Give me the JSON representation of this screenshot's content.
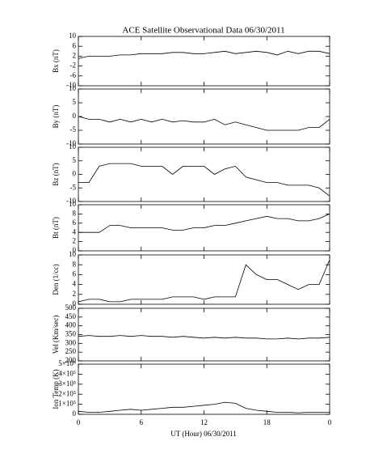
{
  "chart_data": {
    "type": "line",
    "title": "ACE Satellite Observational Data   06/30/2011",
    "xlabel": "UT (Hour)   06/30/2011",
    "x": [
      0,
      1,
      2,
      3,
      4,
      5,
      6,
      7,
      8,
      9,
      10,
      11,
      12,
      13,
      14,
      15,
      16,
      17,
      18,
      19,
      20,
      21,
      22,
      23,
      24
    ],
    "xlim": [
      0,
      24
    ],
    "xticks": [
      0,
      6,
      12,
      18,
      {
        "value": 24,
        "label": "0"
      }
    ],
    "panels": [
      {
        "type": "line",
        "ylabel": "Bx (nT)",
        "ylim": [
          -10,
          10
        ],
        "yticks": [
          -10,
          -6,
          -2,
          2,
          6,
          10
        ],
        "values": [
          1,
          2,
          2,
          2,
          2.5,
          2.5,
          3,
          3,
          3,
          3.5,
          3.5,
          3,
          3,
          3.5,
          4,
          3,
          3.5,
          4,
          3.5,
          2.5,
          4,
          3,
          4,
          4,
          3
        ]
      },
      {
        "type": "line",
        "ylabel": "By (nT)",
        "ylim": [
          -10,
          10
        ],
        "yticks": [
          -10,
          -5,
          0,
          5,
          10
        ],
        "values": [
          0,
          -1,
          -1,
          -2,
          -1,
          -2,
          -1,
          -2,
          -1,
          -2,
          -1.5,
          -2,
          -2,
          -1,
          -3,
          -2,
          -3,
          -4,
          -5,
          -5,
          -5,
          -5,
          -4,
          -4,
          -1
        ]
      },
      {
        "type": "line",
        "ylabel": "Bz (nT)",
        "ylim": [
          -10,
          10
        ],
        "yticks": [
          -10,
          -5,
          0,
          5,
          10
        ],
        "values": [
          -3,
          -3,
          3,
          4,
          4,
          4,
          3,
          3,
          3,
          0,
          3,
          3,
          3,
          0,
          2,
          3,
          -1,
          -2,
          -3,
          -3,
          -4,
          -4,
          -4,
          -5,
          -8
        ]
      },
      {
        "type": "line",
        "ylabel": "Bt (nT)",
        "ylim": [
          0,
          10
        ],
        "yticks": [
          0,
          2,
          4,
          6,
          8,
          10
        ],
        "values": [
          4,
          4,
          4,
          5.5,
          5.5,
          5,
          5,
          5,
          5,
          4.5,
          4.5,
          5,
          5,
          5.5,
          5.5,
          6,
          6.5,
          7,
          7.5,
          7,
          7,
          6.5,
          6.5,
          7,
          8
        ]
      },
      {
        "type": "line",
        "ylabel": "Den (1/cc)",
        "ylim": [
          0,
          10
        ],
        "yticks": [
          0,
          2,
          4,
          6,
          8,
          10
        ],
        "values": [
          0.5,
          1,
          1,
          0.5,
          0.5,
          1,
          1,
          1,
          1,
          1.5,
          1.5,
          1.5,
          1,
          1.5,
          1.5,
          1.5,
          8,
          6,
          5,
          5,
          4,
          3,
          4,
          4,
          9
        ]
      },
      {
        "type": "line",
        "ylabel": "Vel (Km/sec)",
        "ylim": [
          200,
          500
        ],
        "yticks": [
          200,
          250,
          300,
          350,
          400,
          450,
          500
        ],
        "values": [
          340,
          345,
          340,
          340,
          345,
          340,
          345,
          340,
          340,
          335,
          340,
          335,
          330,
          335,
          330,
          335,
          330,
          330,
          325,
          325,
          330,
          325,
          330,
          330,
          335
        ]
      },
      {
        "type": "line",
        "ylabel": "Ion Temp (K)",
        "ylim": [
          0,
          500000
        ],
        "yticks": [
          0,
          {
            "value": 100000,
            "label": "1×10⁵"
          },
          {
            "value": 200000,
            "label": "2×10⁵"
          },
          {
            "value": 300000,
            "label": "3×10⁵"
          },
          {
            "value": 400000,
            "label": "4×10⁵"
          },
          {
            "value": 500000,
            "label": "5×10⁵"
          }
        ],
        "values": [
          30000,
          20000,
          20000,
          30000,
          40000,
          50000,
          40000,
          50000,
          60000,
          70000,
          70000,
          80000,
          90000,
          100000,
          120000,
          110000,
          60000,
          40000,
          30000,
          20000,
          20000,
          15000,
          20000,
          20000,
          20000
        ]
      }
    ]
  }
}
